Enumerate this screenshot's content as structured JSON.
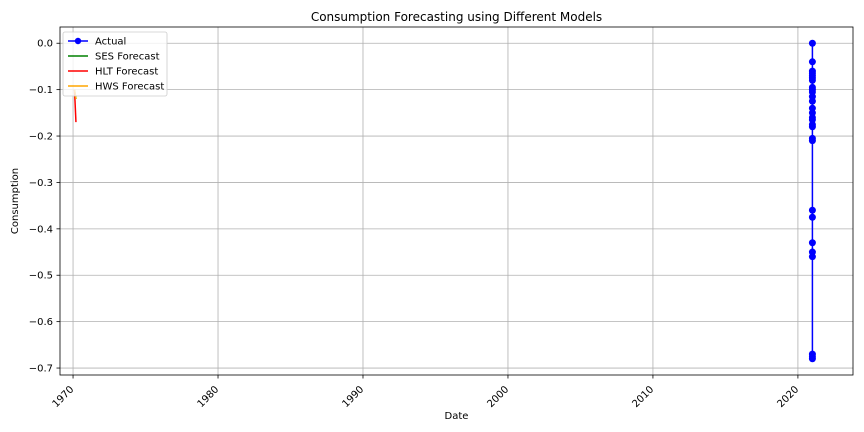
{
  "chart_data": {
    "type": "line",
    "title": "Consumption Forecasting using Different Models",
    "xlabel": "Date",
    "ylabel": "Consumption",
    "xlim": [
      1969.1,
      2023.8
    ],
    "ylim": [
      -0.715,
      0.035
    ],
    "x_ticks": [
      1970,
      1980,
      1990,
      2000,
      2010,
      2020
    ],
    "y_ticks": [
      0.0,
      -0.1,
      -0.2,
      -0.3,
      -0.4,
      -0.5,
      -0.6,
      -0.7
    ],
    "y_tick_labels": [
      "0.0",
      "−0.1",
      "−0.2",
      "−0.3",
      "−0.4",
      "−0.5",
      "−0.6",
      "−0.7"
    ],
    "grid": true,
    "legend_position": "top-left",
    "series": [
      {
        "name": "Actual",
        "color": "#0000ff",
        "marker": "circle",
        "x": [
          2021.0,
          2021.0,
          2021.0,
          2021.0,
          2021.0,
          2021.0,
          2021.0,
          2021.0,
          2021.0,
          2021.0,
          2021.0,
          2021.0,
          2021.0,
          2021.0,
          2021.0,
          2021.0,
          2021.0,
          2021.0,
          2021.0,
          2021.0,
          2021.0,
          2021.0,
          2021.0,
          2021.0,
          2021.0,
          2021.0,
          2021.0,
          2021.0
        ],
        "y": [
          0.0,
          -0.04,
          -0.06,
          -0.065,
          -0.07,
          -0.075,
          -0.08,
          -0.095,
          -0.1,
          -0.105,
          -0.115,
          -0.125,
          -0.14,
          -0.15,
          -0.16,
          -0.165,
          -0.175,
          -0.18,
          -0.205,
          -0.21,
          -0.36,
          -0.375,
          -0.43,
          -0.45,
          -0.46,
          -0.675,
          -0.68,
          -0.67
        ]
      },
      {
        "name": "SES Forecast",
        "color": "#008000",
        "x": [
          1970.1,
          1970.2
        ],
        "y": [
          -0.1,
          -0.12
        ]
      },
      {
        "name": "HLT Forecast",
        "color": "#ff0000",
        "x": [
          1970.1,
          1970.2
        ],
        "y": [
          -0.1,
          -0.17
        ]
      },
      {
        "name": "HWS Forecast",
        "color": "#ffa500",
        "x": [
          1970.1,
          1970.2
        ],
        "y": [
          -0.1,
          -0.12
        ]
      }
    ]
  }
}
